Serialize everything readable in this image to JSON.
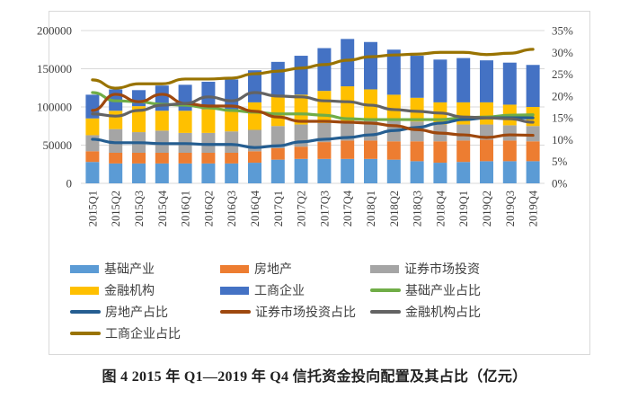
{
  "caption": "图 4   2015 年 Q1—2019 年 Q4 信托资金投向配置及其占比（亿元）",
  "chart_data": {
    "type": "bar",
    "subtype": "stacked-bar-with-secondary-lines",
    "title": "",
    "categories": [
      "2015Q1",
      "2015Q2",
      "2015Q3",
      "2015Q4",
      "2016Q1",
      "2016Q2",
      "2016Q3",
      "2016Q4",
      "2017Q1",
      "2017Q2",
      "2017Q3",
      "2017Q4",
      "2018Q1",
      "2018Q2",
      "2018Q3",
      "2018Q4",
      "2019Q1",
      "2019Q2",
      "2019Q3",
      "2019Q4"
    ],
    "y_left": {
      "ylim": [
        0,
        200000
      ],
      "ticks": [
        0,
        50000,
        100000,
        150000,
        200000
      ],
      "tick_labels": [
        "0",
        "50000",
        "100000",
        "150000",
        "200000"
      ]
    },
    "y_right": {
      "ylim": [
        0,
        35
      ],
      "ticks": [
        0,
        5,
        10,
        15,
        20,
        25,
        30,
        35
      ],
      "tick_labels": [
        "0%",
        "5%",
        "10%",
        "15%",
        "20%",
        "25%",
        "30%",
        "35%"
      ]
    },
    "grid": true,
    "legend_position": "bottom",
    "bar_series": [
      {
        "name": "基础产业",
        "color": "#5B9BD5",
        "values": [
          28000,
          26000,
          26000,
          26000,
          26000,
          26000,
          26000,
          27000,
          31000,
          32000,
          32000,
          32000,
          32000,
          31000,
          29000,
          27000,
          28000,
          29000,
          29000,
          29000
        ]
      },
      {
        "name": "房地产",
        "color": "#ED7D31",
        "values": [
          14000,
          14000,
          14000,
          14000,
          14000,
          14000,
          14000,
          15000,
          15000,
          16000,
          22000,
          24000,
          24000,
          24000,
          26000,
          28000,
          28000,
          28000,
          27000,
          26000
        ]
      },
      {
        "name": "证券市场投资",
        "color": "#A5A5A5",
        "values": [
          21000,
          31000,
          27000,
          29000,
          26000,
          26000,
          28000,
          28000,
          29000,
          29000,
          25000,
          24000,
          28000,
          28000,
          26000,
          22000,
          21000,
          20000,
          20000,
          20000
        ]
      },
      {
        "name": "金融机构",
        "color": "#FFC000",
        "values": [
          22000,
          24000,
          34000,
          26000,
          29000,
          31000,
          27000,
          36000,
          38000,
          39000,
          42000,
          47000,
          39000,
          33000,
          31000,
          29000,
          29000,
          29000,
          27000,
          25000
        ]
      },
      {
        "name": "工商企业",
        "color": "#4472C4",
        "values": [
          31000,
          28000,
          21000,
          33000,
          34000,
          36000,
          41000,
          42000,
          46000,
          51000,
          56000,
          62000,
          62000,
          59000,
          55000,
          56000,
          58000,
          55000,
          55000,
          55000
        ]
      }
    ],
    "line_series": [
      {
        "name": "基础产业占比",
        "color": "#70AD47",
        "axis": "right",
        "values": [
          20.8,
          18.9,
          18.7,
          18.1,
          17.9,
          17.3,
          16.7,
          16.3,
          15.9,
          15.9,
          15.6,
          14.8,
          14.6,
          14.6,
          14.6,
          14.6,
          15.0,
          15.2,
          15.6,
          15.7
        ]
      },
      {
        "name": "房地产占比",
        "color": "#255E91",
        "axis": "right",
        "values": [
          10.1,
          9.3,
          9.3,
          9.1,
          9.1,
          8.9,
          8.9,
          8.2,
          8.6,
          9.5,
          10.1,
          10.5,
          11.1,
          12.1,
          12.8,
          13.8,
          14.6,
          15.0,
          15.0,
          15.0
        ]
      },
      {
        "name": "证券市场投资占比",
        "color": "#9E480E",
        "axis": "right",
        "values": [
          16.7,
          20.4,
          18.7,
          20.4,
          18.3,
          17.7,
          17.7,
          16.5,
          15.2,
          14.2,
          14.2,
          14.0,
          13.8,
          13.2,
          12.3,
          11.5,
          11.1,
          10.5,
          11.1,
          11.0
        ]
      },
      {
        "name": "金融机构占比",
        "color": "#636363",
        "axis": "right",
        "values": [
          15.9,
          15.4,
          16.7,
          17.9,
          18.3,
          19.8,
          18.9,
          20.8,
          20.0,
          19.8,
          18.9,
          18.7,
          17.9,
          16.9,
          16.5,
          16.1,
          15.2,
          15.0,
          14.8,
          14.0
        ]
      },
      {
        "name": "工商企业占比",
        "color": "#997300",
        "axis": "right",
        "values": [
          23.7,
          21.8,
          22.8,
          22.8,
          23.9,
          23.9,
          24.1,
          25.1,
          25.7,
          26.4,
          27.2,
          28.2,
          29.0,
          29.4,
          29.6,
          30.0,
          30.0,
          29.5,
          29.8,
          30.7
        ]
      }
    ],
    "legend_rows": [
      [
        {
          "series": "基础产业",
          "kind": "bar"
        },
        {
          "series": "房地产",
          "kind": "bar"
        },
        {
          "series": "证券市场投资",
          "kind": "bar"
        }
      ],
      [
        {
          "series": "金融机构",
          "kind": "bar"
        },
        {
          "series": "工商企业",
          "kind": "bar"
        },
        {
          "series": "基础产业占比",
          "kind": "line"
        }
      ],
      [
        {
          "series": "房地产占比",
          "kind": "line"
        },
        {
          "series": "证券市场投资占比",
          "kind": "line"
        },
        {
          "series": "金融机构占比",
          "kind": "line"
        }
      ],
      [
        {
          "series": "工商企业占比",
          "kind": "line"
        }
      ]
    ]
  }
}
